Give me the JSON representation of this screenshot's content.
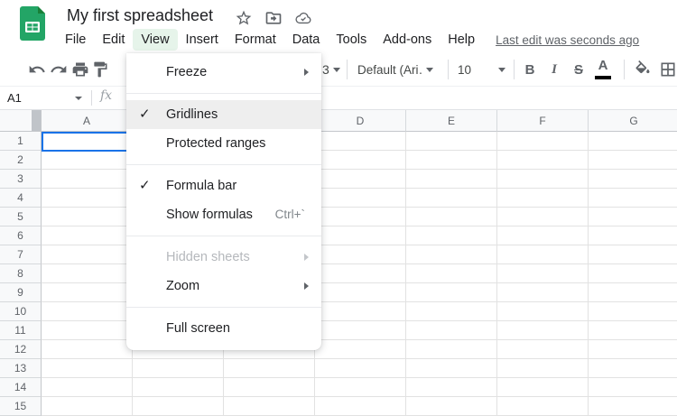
{
  "header": {
    "title": "My first spreadsheet",
    "menu_items": [
      "File",
      "Edit",
      "View",
      "Insert",
      "Format",
      "Data",
      "Tools",
      "Add-ons",
      "Help"
    ],
    "active_menu": "View",
    "last_edit": "Last edit was seconds ago",
    "title_icons": [
      "star-icon",
      "move-to-folder-icon",
      "cloud-saved-icon"
    ]
  },
  "toolbar": {
    "icons_left": [
      "undo-icon",
      "redo-icon",
      "print-icon",
      "paint-format-icon"
    ],
    "number_format_visible": "3",
    "font_name": "Default (Ari…",
    "font_size": "10",
    "bold": "B",
    "italic": "I",
    "strikethrough": "S",
    "text_color": "A",
    "icons_right": [
      "fill-color-icon",
      "borders-icon"
    ]
  },
  "formula_bar": {
    "name_box": "A1",
    "fx": "fx"
  },
  "view_menu": {
    "items": [
      {
        "label": "Freeze",
        "submenu": true
      },
      {
        "divider": true
      },
      {
        "label": "Gridlines",
        "checked": true,
        "hover": true
      },
      {
        "label": "Protected ranges"
      },
      {
        "divider": true
      },
      {
        "label": "Formula bar",
        "checked": true
      },
      {
        "label": "Show formulas",
        "shortcut": "Ctrl+`"
      },
      {
        "divider": true
      },
      {
        "label": "Hidden sheets",
        "disabled": true,
        "submenu": true
      },
      {
        "label": "Zoom",
        "submenu": true
      },
      {
        "divider": true
      },
      {
        "label": "Full screen"
      }
    ]
  },
  "grid": {
    "columns": [
      "A",
      "B",
      "C",
      "D",
      "E",
      "F",
      "G"
    ],
    "rows": [
      "1",
      "2",
      "3",
      "4",
      "5",
      "6",
      "7",
      "8",
      "9",
      "10",
      "11",
      "12",
      "13",
      "14",
      "15"
    ],
    "selected_cell": "A1"
  },
  "colors": {
    "logo_green": "#23a566",
    "logo_fold_green": "#188038",
    "active_menu_pill": "#e6f4ea",
    "selection_blue": "#1a73e8",
    "icon_gray": "#5f6368",
    "header_bg": "#f8f9fa",
    "gridline": "#e2e2e2",
    "menu_hover": "#eeeeee"
  }
}
